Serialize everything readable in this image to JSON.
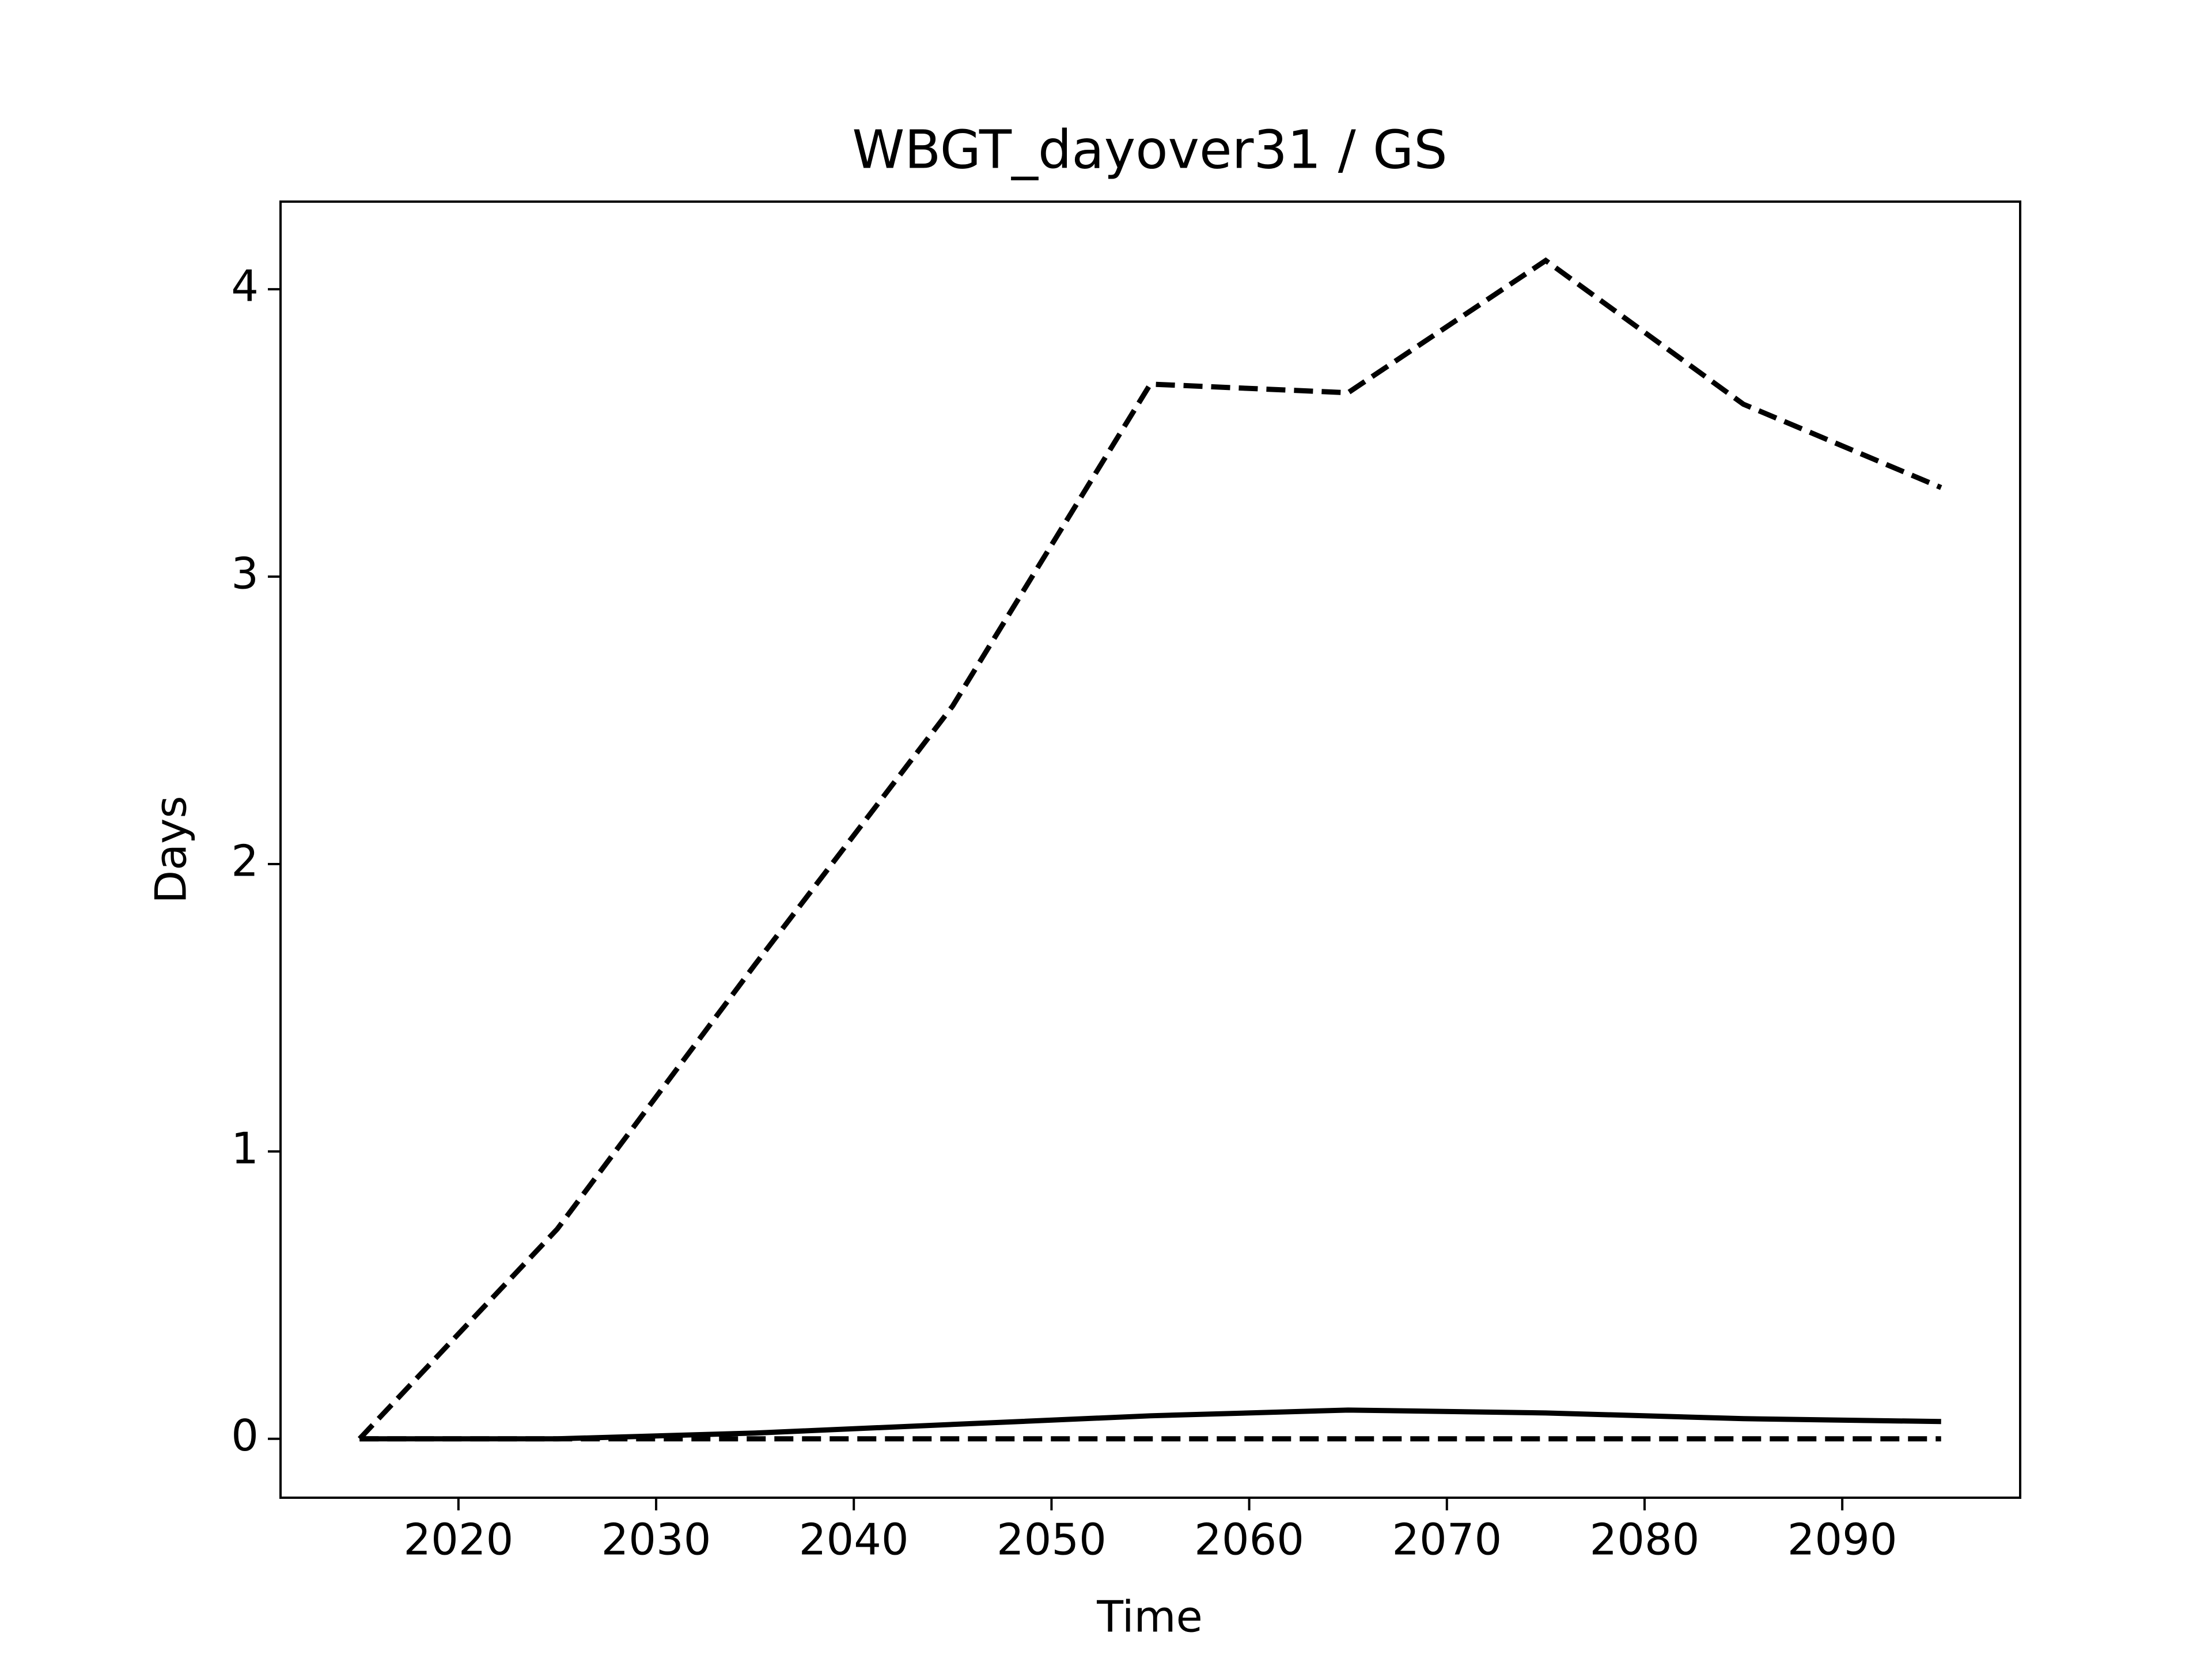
{
  "chart_data": {
    "type": "line",
    "title": "WBGT_dayover31 / GS",
    "x_label": "Time",
    "y_label": "Days",
    "x": [
      2015,
      2025,
      2035,
      2045,
      2055,
      2065,
      2075,
      2085,
      2095
    ],
    "series": [
      {
        "color": "#000000",
        "linestyle": "dashed",
        "values": [
          0,
          0.73,
          1.65,
          2.55,
          3.67,
          3.64,
          4.1,
          3.6,
          3.31
        ]
      },
      {
        "color": "#000000",
        "linestyle": "solid",
        "values": [
          0,
          0,
          0.02,
          0.05,
          0.08,
          0.1,
          0.09,
          0.07,
          0.06
        ]
      },
      {
        "color": "#000000",
        "linestyle": "dashed",
        "values": [
          0,
          0,
          0,
          0,
          0,
          0,
          0,
          0,
          0
        ]
      }
    ],
    "xlim": [
      2011,
      2099
    ],
    "xticks": [
      2020,
      2030,
      2040,
      2050,
      2060,
      2070,
      2080,
      2090
    ],
    "ylim": [
      -0.205,
      4.305
    ],
    "yticks": [
      0,
      1,
      2,
      3,
      4
    ],
    "grid": false
  }
}
